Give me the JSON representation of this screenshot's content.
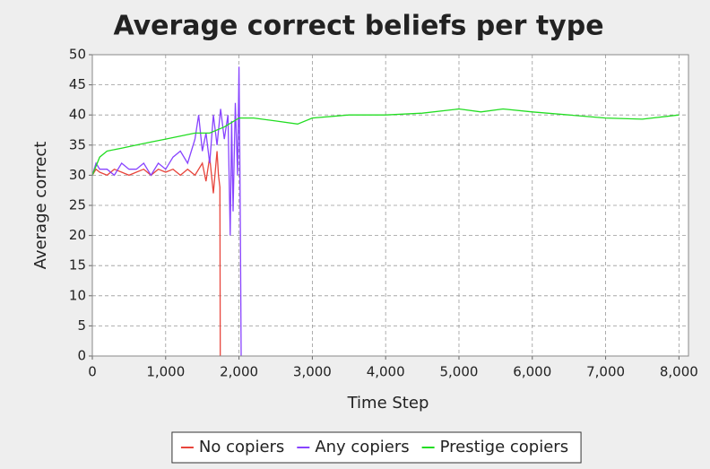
{
  "chart_data": {
    "type": "line",
    "title": "Average correct beliefs per type",
    "x_label": "Time Step",
    "y_label": "Average correct",
    "xlim": [
      0,
      8130
    ],
    "ylim": [
      0,
      50
    ],
    "xticks": [
      0,
      {
        "value": 1000,
        "label": "1,000"
      },
      {
        "value": 2000,
        "label": "2,000"
      },
      {
        "value": 3000,
        "label": "3,000"
      },
      {
        "value": 4000,
        "label": "4,000"
      },
      {
        "value": 5000,
        "label": "5,000"
      },
      {
        "value": 6000,
        "label": "6,000"
      },
      {
        "value": 7000,
        "label": "7,000"
      },
      {
        "value": 8000,
        "label": "8,000"
      }
    ],
    "yticks": [
      0,
      5,
      10,
      15,
      20,
      25,
      30,
      35,
      40,
      45,
      50
    ],
    "grid": true,
    "legend": "bottom",
    "series": [
      {
        "name": "No copiers",
        "color": "#e8453c",
        "x": [
          0,
          50,
          100,
          200,
          300,
          400,
          500,
          600,
          700,
          800,
          900,
          1000,
          1100,
          1200,
          1300,
          1400,
          1500,
          1550,
          1600,
          1650,
          1700,
          1720,
          1740,
          1745
        ],
        "values": [
          30,
          31,
          30.5,
          30,
          31,
          30.5,
          30,
          30.5,
          31,
          30,
          31,
          30.5,
          31,
          30,
          31,
          30,
          32,
          29,
          33,
          27,
          34,
          30,
          28,
          0
        ]
      },
      {
        "name": "Any copiers",
        "color": "#8844ff",
        "x": [
          0,
          50,
          100,
          200,
          300,
          400,
          500,
          600,
          700,
          800,
          900,
          1000,
          1100,
          1200,
          1300,
          1400,
          1450,
          1500,
          1550,
          1600,
          1650,
          1700,
          1750,
          1800,
          1850,
          1880,
          1900,
          1920,
          1950,
          1980,
          2000,
          2010,
          2020,
          2030
        ],
        "values": [
          30,
          32,
          31,
          31,
          30,
          32,
          31,
          31,
          32,
          30,
          32,
          31,
          33,
          34,
          32,
          36,
          40,
          34,
          37,
          32,
          40,
          35,
          41,
          36,
          40,
          20,
          39,
          24,
          42,
          30,
          48,
          35,
          20,
          0
        ]
      },
      {
        "name": "Prestige copiers",
        "color": "#22dd22",
        "x": [
          0,
          100,
          200,
          400,
          600,
          800,
          1000,
          1200,
          1400,
          1600,
          1800,
          2000,
          2200,
          2500,
          2800,
          3000,
          3500,
          4000,
          4500,
          5000,
          5300,
          5600,
          6000,
          6500,
          7000,
          7500,
          8000
        ],
        "values": [
          30,
          33,
          34,
          34.5,
          35,
          35.5,
          36,
          36.5,
          37,
          37,
          38,
          39.5,
          39.5,
          39,
          38.5,
          39.5,
          40,
          40,
          40.3,
          41,
          40.5,
          41,
          40.5,
          40,
          39.5,
          39.3,
          40
        ]
      }
    ]
  }
}
